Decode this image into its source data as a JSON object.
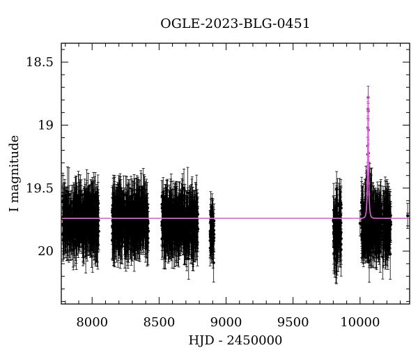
{
  "chart_data": {
    "type": "scatter",
    "title": "OGLE-2023-BLG-0451",
    "xlabel": "HJD - 2450000",
    "ylabel": "I magnitude",
    "xlim": [
      7770,
      10370
    ],
    "ylim": [
      20.42,
      18.35
    ],
    "y_inverted": true,
    "xticks": [
      8000,
      8500,
      9000,
      9500,
      10000
    ],
    "xtick_labels": [
      "8000",
      "8500",
      "9000",
      "9500",
      "10000"
    ],
    "yticks": [
      18.5,
      19,
      19.5,
      20
    ],
    "ytick_labels": [
      "18.5",
      "19",
      "19.5",
      "20"
    ],
    "grid": false,
    "baseline_magnitude": 19.74,
    "observing_seasons": [
      {
        "start": 7780,
        "end": 8050,
        "mean_mag": 19.76,
        "scatter": 0.17,
        "error": 0.18
      },
      {
        "start": 8150,
        "end": 8420,
        "mean_mag": 19.76,
        "scatter": 0.17,
        "error": 0.18
      },
      {
        "start": 8520,
        "end": 8790,
        "mean_mag": 19.78,
        "scatter": 0.17,
        "error": 0.18
      },
      {
        "start": 8880,
        "end": 8910,
        "mean_mag": 19.85,
        "scatter": 0.15,
        "error": 0.16
      },
      {
        "start": 9800,
        "end": 9860,
        "mean_mag": 19.85,
        "scatter": 0.2,
        "error": 0.18
      },
      {
        "start": 10010,
        "end": 10230,
        "mean_mag": 19.8,
        "scatter": 0.18,
        "error": 0.18
      }
    ],
    "event": {
      "t0": 10060,
      "peak_mag": 18.77,
      "rise_start": 10035,
      "fall_end": 10085
    },
    "outliers": [
      {
        "x": 10355,
        "y": 19.72
      },
      {
        "x": 10195,
        "y": 19.6
      },
      {
        "x": 10000,
        "y": 19.78
      }
    ],
    "colors": {
      "points": "#000000",
      "model": "#dd66dd",
      "peak_points": "#772266"
    }
  }
}
